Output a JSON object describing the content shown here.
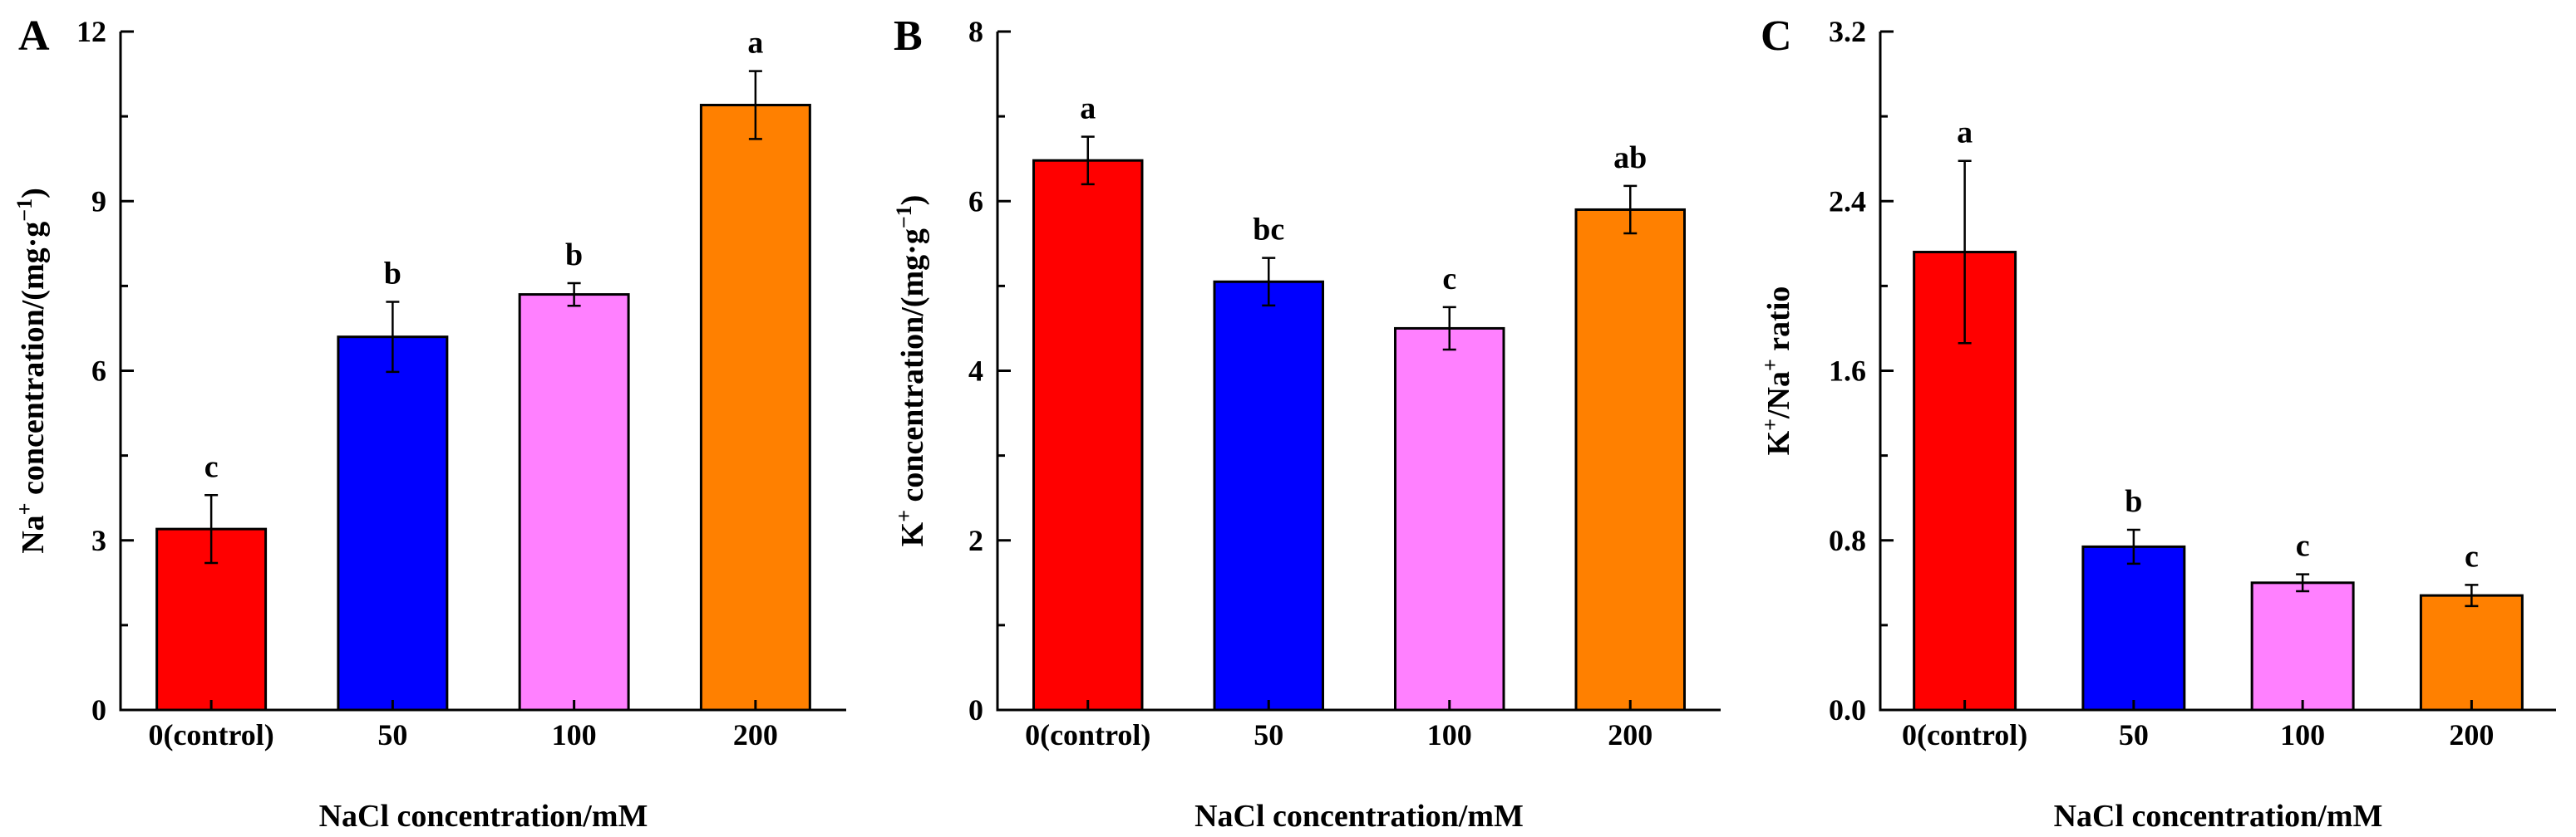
{
  "chart_data": [
    {
      "type": "bar",
      "panel": "A",
      "categories": [
        "0(control)",
        "50",
        "100",
        "200"
      ],
      "values": [
        3.2,
        6.6,
        7.35,
        10.7
      ],
      "errors": [
        0.6,
        0.62,
        0.2,
        0.6
      ],
      "labels": [
        "c",
        "b",
        "b",
        "a"
      ],
      "colors": [
        "#ff0000",
        "#0000ff",
        "#ff80ff",
        "#ff8000"
      ],
      "ylim": [
        0,
        12
      ],
      "yticks": [
        0,
        3,
        6,
        9,
        12
      ],
      "ytick_labels": [
        "0",
        "3",
        "6",
        "9",
        "12"
      ],
      "xlabel": "NaCl concentration/mM",
      "ylabel": {
        "base": "Na",
        "sup1": "+",
        "mid": " concentration/(mg·g",
        "sup2": "−1",
        "end": ")"
      }
    },
    {
      "type": "bar",
      "panel": "B",
      "categories": [
        "0(control)",
        "50",
        "100",
        "200"
      ],
      "values": [
        6.48,
        5.05,
        4.5,
        5.9
      ],
      "errors": [
        0.28,
        0.28,
        0.25,
        0.28
      ],
      "labels": [
        "a",
        "bc",
        "c",
        "ab"
      ],
      "colors": [
        "#ff0000",
        "#0000ff",
        "#ff80ff",
        "#ff8000"
      ],
      "ylim": [
        0,
        8
      ],
      "yticks": [
        0,
        2,
        4,
        6,
        8
      ],
      "ytick_labels": [
        "0",
        "2",
        "4",
        "6",
        "8"
      ],
      "xlabel": "NaCl concentration/mM",
      "ylabel": {
        "base": "K",
        "sup1": "+",
        "mid": " concentration/(mg·g",
        "sup2": "−1",
        "end": ")"
      }
    },
    {
      "type": "bar",
      "panel": "C",
      "categories": [
        "0(control)",
        "50",
        "100",
        "200"
      ],
      "values": [
        2.16,
        0.77,
        0.6,
        0.54
      ],
      "errors": [
        0.43,
        0.08,
        0.04,
        0.05
      ],
      "labels": [
        "a",
        "b",
        "c",
        "c"
      ],
      "colors": [
        "#ff0000",
        "#0000ff",
        "#ff80ff",
        "#ff8000"
      ],
      "ylim": [
        0,
        3.2
      ],
      "yticks": [
        0,
        0.8,
        1.6,
        2.4,
        3.2
      ],
      "ytick_labels": [
        "0.0",
        "0.8",
        "1.6",
        "2.4",
        "3.2"
      ],
      "xlabel": "NaCl concentration/mM",
      "ylabel": {
        "base": "K",
        "sup1": "+",
        "mid": "/Na",
        "sup2": "+",
        "end": " ratio"
      }
    }
  ]
}
